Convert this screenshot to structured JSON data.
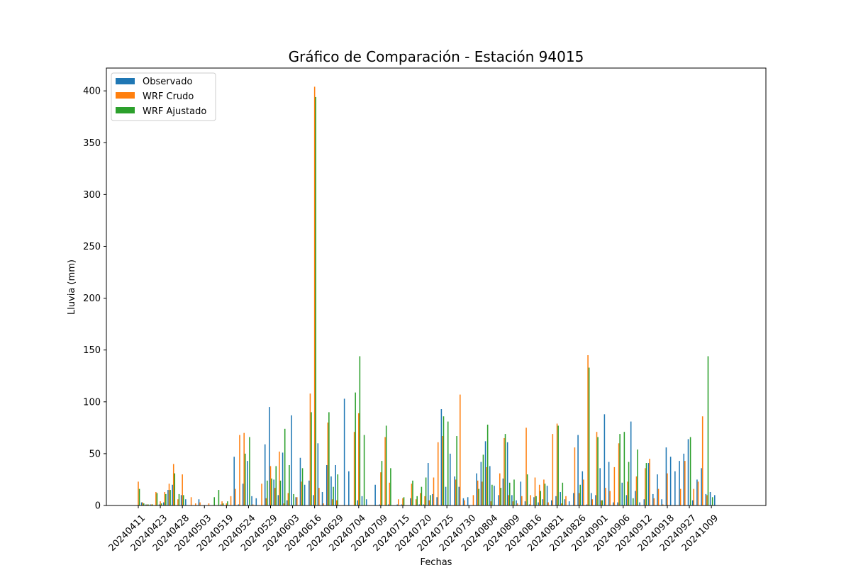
{
  "chart_data": {
    "type": "bar",
    "title": "Gráfico de Comparación - Estación 94015",
    "xlabel": "Fechas",
    "ylabel": "Lluvia (mm)",
    "ylim": [
      0,
      422
    ],
    "yticks": [
      0,
      50,
      100,
      150,
      200,
      250,
      300,
      350,
      400
    ],
    "legend_position": "top-left",
    "grid": false,
    "tick_labels": [
      "20240411",
      "20240423",
      "20240428",
      "20240503",
      "20240519",
      "20240524",
      "20240529",
      "20240603",
      "20240616",
      "20240629",
      "20240704",
      "20240709",
      "20240715",
      "20240720",
      "20240725",
      "20240730",
      "20240804",
      "20240809",
      "20240816",
      "20240821",
      "20240826",
      "20240901",
      "20240906",
      "20240912",
      "20240918",
      "20240927",
      "20241009"
    ],
    "series": [
      {
        "name": "Observado",
        "color": "#1f77b4",
        "values": [
          [
            0,
            3,
            1,
            1,
            0
          ],
          [
            1,
            3,
            15,
            20,
            0
          ],
          [
            10,
            6,
            0,
            0,
            6
          ],
          [
            0,
            0,
            0,
            0,
            1
          ],
          [
            0,
            0,
            47,
            1,
            21
          ],
          [
            43,
            9,
            7,
            0,
            59
          ],
          [
            95,
            25,
            10,
            51,
            5
          ],
          [
            87,
            8,
            46,
            20,
            24
          ],
          [
            10,
            60,
            13,
            39,
            28
          ],
          [
            39,
            0,
            103,
            33,
            0
          ],
          [
            5,
            9,
            6,
            0,
            20
          ],
          [
            1,
            0,
            1,
            0,
            1
          ],
          [
            1,
            0,
            7,
            0,
            1
          ],
          [
            1,
            41,
            11,
            8,
            93
          ],
          [
            18,
            50,
            28,
            18,
            7
          ],
          [
            8,
            0,
            31,
            42,
            62
          ],
          [
            38,
            19,
            10,
            26,
            61
          ],
          [
            10,
            5,
            23,
            4,
            1
          ],
          [
            8,
            3,
            6,
            19,
            5
          ],
          [
            9,
            13,
            6,
            4,
            12
          ],
          [
            68,
            33,
            1,
            12,
            10
          ],
          [
            36,
            88,
            42,
            3,
            3
          ],
          [
            22,
            10,
            81,
            14,
            3
          ],
          [
            6,
            41,
            11,
            30,
            6
          ],
          [
            56,
            47,
            33,
            43,
            50
          ],
          [
            64,
            5,
            25,
            36,
            11
          ],
          [
            13,
            10,
            0,
            0,
            0
          ]
        ]
      },
      {
        "name": "WRF Crudo",
        "color": "#ff7f0e",
        "values": [
          [
            23,
            3,
            1,
            1,
            13
          ],
          [
            4,
            13,
            21,
            40,
            6
          ],
          [
            30,
            0,
            8,
            2,
            3
          ],
          [
            0,
            2,
            0,
            0,
            4
          ],
          [
            2,
            9,
            16,
            68,
            70
          ],
          [
            0,
            1,
            0,
            21,
            7
          ],
          [
            38,
            17,
            52,
            2,
            12
          ],
          [
            0,
            8,
            23,
            0,
            108
          ],
          [
            404,
            17,
            2,
            80,
            6
          ],
          [
            5,
            0,
            0,
            0,
            71
          ],
          [
            89,
            0,
            0,
            0,
            0
          ],
          [
            32,
            66,
            22,
            0,
            6
          ],
          [
            7,
            0,
            21,
            6,
            12
          ],
          [
            9,
            5,
            27,
            61,
            67
          ],
          [
            0,
            0,
            25,
            107,
            5
          ],
          [
            0,
            10,
            24,
            23,
            37
          ],
          [
            4,
            0,
            31,
            65,
            10
          ],
          [
            4,
            2,
            9,
            75,
            10
          ],
          [
            27,
            20,
            25,
            3,
            69
          ],
          [
            79,
            2,
            9,
            0,
            56
          ],
          [
            12,
            25,
            145,
            6,
            71
          ],
          [
            5,
            17,
            14,
            37,
            60
          ],
          [
            0,
            23,
            0,
            28,
            0
          ],
          [
            36,
            45,
            7,
            16,
            1
          ],
          [
            31,
            0,
            0,
            16,
            43
          ],
          [
            0,
            16,
            23,
            86,
            10
          ],
          [
            0,
            0,
            0,
            0,
            0
          ]
        ]
      },
      {
        "name": "WRF Ajustado",
        "color": "#2ca02c",
        "values": [
          [
            16,
            2,
            1,
            1,
            12
          ],
          [
            2,
            11,
            15,
            31,
            11
          ],
          [
            10,
            0,
            0,
            0,
            0
          ],
          [
            0,
            0,
            8,
            15,
            2
          ],
          [
            4,
            0,
            0,
            0,
            50
          ],
          [
            66,
            0,
            0,
            0,
            24
          ],
          [
            26,
            38,
            24,
            74,
            39
          ],
          [
            11,
            0,
            36,
            0,
            90
          ],
          [
            394,
            0,
            0,
            90,
            18
          ],
          [
            30,
            0,
            0,
            0,
            109
          ],
          [
            144,
            68,
            0,
            0,
            0
          ],
          [
            43,
            77,
            36,
            0,
            0
          ],
          [
            8,
            0,
            24,
            9,
            18
          ],
          [
            27,
            10,
            0,
            0,
            86
          ],
          [
            81,
            0,
            67,
            0,
            0
          ],
          [
            0,
            0,
            16,
            49,
            78
          ],
          [
            20,
            0,
            17,
            69,
            22
          ],
          [
            25,
            0,
            0,
            30,
            0
          ],
          [
            9,
            14,
            21,
            0,
            0
          ],
          [
            77,
            22,
            0,
            0,
            0
          ],
          [
            20,
            0,
            133,
            0,
            66
          ],
          [
            5,
            0,
            0,
            0,
            69
          ],
          [
            71,
            42,
            7,
            54,
            0
          ],
          [
            41,
            0,
            0,
            0,
            0
          ],
          [
            0,
            0,
            0,
            0,
            0
          ],
          [
            66,
            0,
            0,
            0,
            144
          ],
          [
            8,
            0,
            0,
            0,
            0
          ]
        ]
      }
    ]
  }
}
